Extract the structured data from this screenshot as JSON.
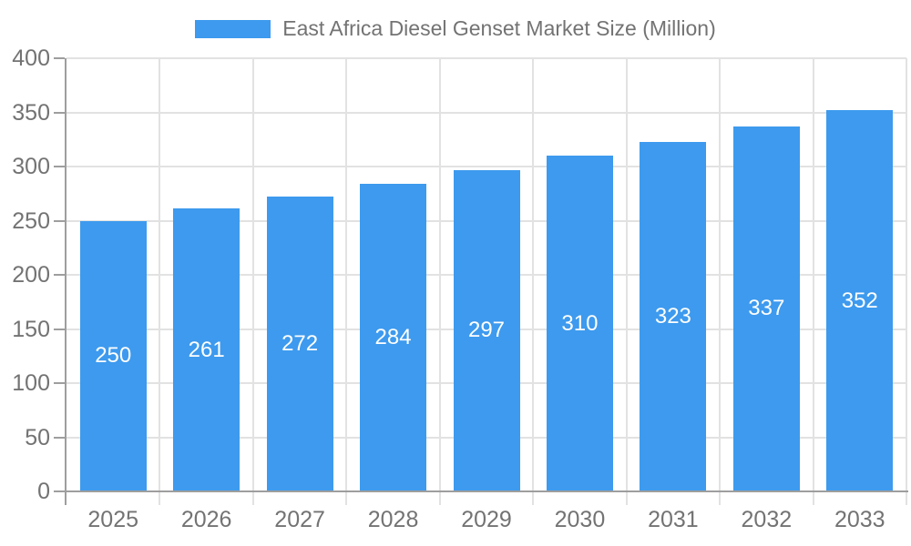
{
  "colors": {
    "bar": "#3d9aee",
    "axis": "#9e9e9e",
    "grid": "#e2e2e2",
    "label_text": "#737373",
    "bar_label_text": "#ffffff",
    "background": "#ffffff"
  },
  "legend": {
    "position": "top-center"
  },
  "chart_data": {
    "type": "bar",
    "title": "East Africa Diesel Genset Market Size (Million)",
    "categories": [
      "2025",
      "2026",
      "2027",
      "2028",
      "2029",
      "2030",
      "2031",
      "2032",
      "2033"
    ],
    "values": [
      250,
      261,
      272,
      284,
      297,
      310,
      323,
      337,
      352
    ],
    "xlabel": "",
    "ylabel": "",
    "ylim": [
      0,
      400
    ],
    "yticks": [
      0,
      50,
      100,
      150,
      200,
      250,
      300,
      350,
      400
    ],
    "grid": true,
    "legend_position": "top",
    "value_labels": "inside-middle"
  }
}
